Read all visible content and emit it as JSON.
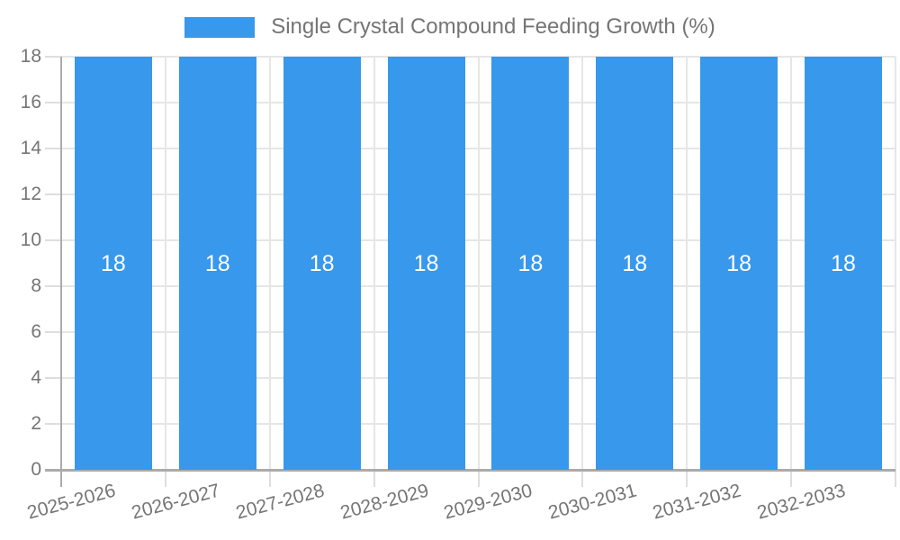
{
  "chart_data": {
    "type": "bar",
    "title": "Single Crystal Compound Feeding Growth (%)",
    "legend": {
      "position": "top",
      "label": "Single Crystal Compound Feeding Growth (%)"
    },
    "categories": [
      "2025-2026",
      "2026-2027",
      "2027-2028",
      "2028-2029",
      "2029-2030",
      "2030-2031",
      "2031-2032",
      "2032-2033"
    ],
    "series": [
      {
        "name": "Single Crystal Compound Feeding Growth (%)",
        "values": [
          18,
          18,
          18,
          18,
          18,
          18,
          18,
          18
        ]
      }
    ],
    "value_labels": [
      "18",
      "18",
      "18",
      "18",
      "18",
      "18",
      "18",
      "18"
    ],
    "y_tick_labels": [
      "0",
      "2",
      "4",
      "6",
      "8",
      "10",
      "12",
      "14",
      "16",
      "18"
    ],
    "xlabel": "",
    "ylabel": "",
    "ylim": [
      0,
      18
    ],
    "ytick_step": 2,
    "grid": true,
    "colors": {
      "bar": "#3898ec",
      "value_label": "#ffffff",
      "axis_text": "#757575",
      "legend_text": "#757575",
      "gridline": "#e6e6e6",
      "tick": "#dedede",
      "axis_line": "#ababab"
    }
  }
}
